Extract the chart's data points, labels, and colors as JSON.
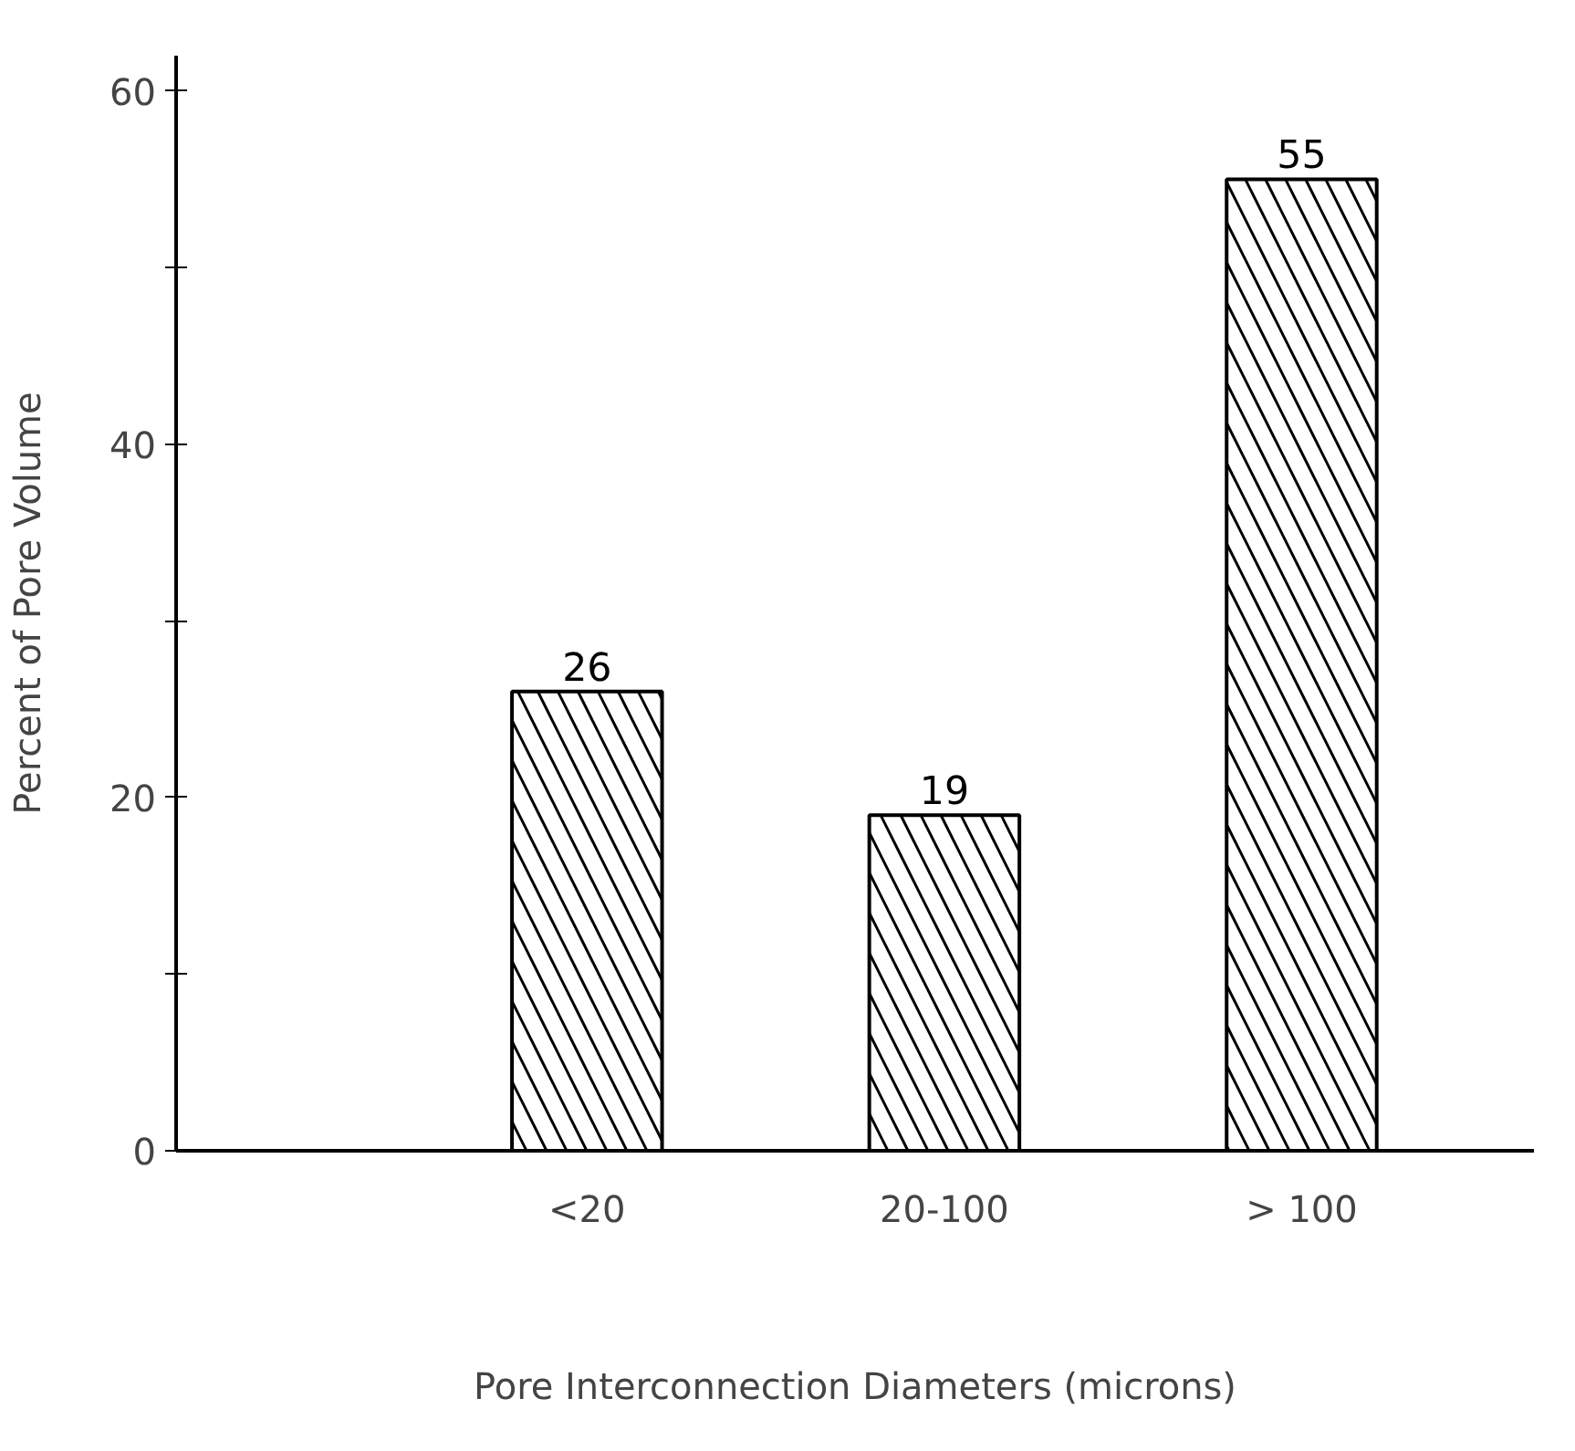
{
  "chart_data": {
    "type": "bar",
    "xlabel": "Pore Interconnection Diameters (microns)",
    "ylabel": "Percent of Pore Volume",
    "categories": [
      "<20",
      "20-100",
      "> 100"
    ],
    "values": [
      26,
      19,
      55
    ],
    "color": "#000000",
    "data_labels": true,
    "ylim": [
      0,
      62
    ],
    "yticks": [
      0,
      {
        "value": 10,
        "label": null
      },
      20,
      {
        "value": 30,
        "label": null
      },
      40,
      {
        "value": 50,
        "label": null
      },
      60
    ],
    "grid": false
  }
}
